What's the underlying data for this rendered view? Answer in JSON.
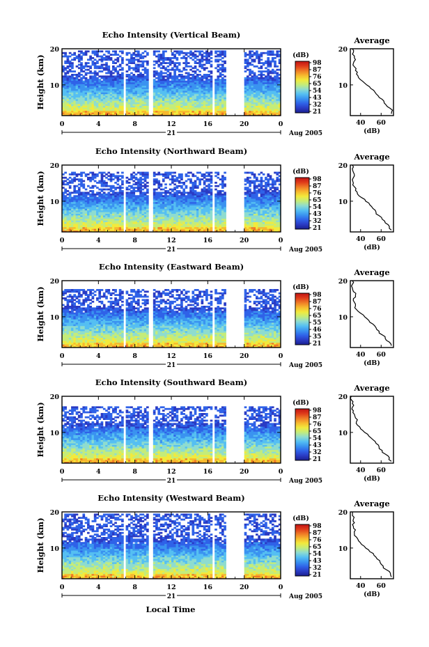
{
  "figure": {
    "xlabel": "Local Time",
    "date_label": "Aug 2005",
    "day_label": "21",
    "ylabel": "Height (km)",
    "colorbar_unit": "(dB)",
    "average_title": "Average",
    "average_xlabel": "(dB)",
    "colors": {
      "map": [
        "#1a1f8e",
        "#2a3bc4",
        "#2f62e8",
        "#3a93f0",
        "#55bff2",
        "#8edccf",
        "#c4ec7a",
        "#f2ea3c",
        "#f7b82e",
        "#ef7a26",
        "#df3a1a",
        "#c01414"
      ],
      "line": "#000000",
      "background": "#ffffff"
    }
  },
  "chart_data": [
    {
      "type": "heatmap",
      "title": "Echo Intensity (Vertical Beam)",
      "xlabel": "Local Time",
      "ylabel": "Height (km)",
      "x_ticks": [
        "0",
        "4",
        "8",
        "12",
        "16",
        "20",
        "0"
      ],
      "y_ticks": [
        "10",
        "20"
      ],
      "xlim": [
        0,
        24
      ],
      "ylim": [
        1.5,
        20
      ],
      "colorbar": {
        "label": "(dB)",
        "ticks": [
          "98",
          "87",
          "76",
          "65",
          "54",
          "43",
          "32",
          "21"
        ],
        "range": [
          21,
          98
        ]
      },
      "data_gaps_hours": [
        [
          6.7,
          7.1
        ],
        [
          9.6,
          10.0
        ],
        [
          16.6,
          16.8
        ],
        [
          18.1,
          19.9
        ]
      ],
      "echo_top_km": 19.5,
      "average_profile": {
        "title": "Average",
        "xlabel": "(dB)",
        "x_ticks": [
          "40",
          "60"
        ],
        "y_ticks": [
          "10",
          "20"
        ],
        "xlim": [
          30,
          72
        ],
        "ylim": [
          1.5,
          20
        ],
        "points": [
          [
            70,
            2
          ],
          [
            71,
            3
          ],
          [
            66,
            4
          ],
          [
            63,
            5
          ],
          [
            61,
            6
          ],
          [
            57,
            7
          ],
          [
            54,
            8
          ],
          [
            50,
            9
          ],
          [
            46,
            10
          ],
          [
            42,
            11
          ],
          [
            38,
            12
          ],
          [
            36,
            13
          ],
          [
            35,
            14
          ],
          [
            34,
            15
          ],
          [
            33,
            16
          ],
          [
            35,
            17
          ],
          [
            34,
            18
          ],
          [
            33,
            19
          ],
          [
            32,
            20
          ]
        ]
      }
    },
    {
      "type": "heatmap",
      "title": "Echo Intensity (Northward Beam)",
      "xlabel": "Local Time",
      "ylabel": "Height (km)",
      "x_ticks": [
        "0",
        "4",
        "8",
        "12",
        "16",
        "20",
        "0"
      ],
      "y_ticks": [
        "10",
        "20"
      ],
      "xlim": [
        0,
        24
      ],
      "ylim": [
        1.5,
        20
      ],
      "colorbar": {
        "label": "(dB)",
        "ticks": [
          "98",
          "87",
          "76",
          "65",
          "54",
          "43",
          "32",
          "21"
        ],
        "range": [
          21,
          98
        ]
      },
      "data_gaps_hours": [
        [
          6.7,
          7.1
        ],
        [
          9.6,
          10.0
        ],
        [
          16.6,
          16.8
        ],
        [
          18.1,
          19.9
        ]
      ],
      "echo_top_km": 18.0,
      "average_profile": {
        "title": "Average",
        "xlabel": "(dB)",
        "x_ticks": [
          "40",
          "60"
        ],
        "y_ticks": [
          "10",
          "20"
        ],
        "xlim": [
          30,
          72
        ],
        "ylim": [
          1.5,
          20
        ],
        "points": [
          [
            70,
            2
          ],
          [
            68,
            3
          ],
          [
            64,
            4
          ],
          [
            61,
            5
          ],
          [
            58,
            6
          ],
          [
            55,
            7
          ],
          [
            52,
            8
          ],
          [
            49,
            9
          ],
          [
            45,
            10
          ],
          [
            41,
            11
          ],
          [
            37,
            12
          ],
          [
            35,
            13
          ],
          [
            34,
            14
          ],
          [
            33,
            15
          ],
          [
            32,
            16
          ],
          [
            34,
            17
          ],
          [
            33,
            18
          ],
          [
            32,
            19
          ],
          [
            32,
            20
          ]
        ]
      }
    },
    {
      "type": "heatmap",
      "title": "Echo Intensity (Eastward Beam)",
      "xlabel": "Local Time",
      "ylabel": "Height (km)",
      "x_ticks": [
        "0",
        "4",
        "8",
        "12",
        "16",
        "20",
        "0"
      ],
      "y_ticks": [
        "10",
        "20"
      ],
      "xlim": [
        0,
        24
      ],
      "ylim": [
        1.5,
        20
      ],
      "colorbar": {
        "label": "(dB)",
        "ticks": [
          "98",
          "87",
          "76",
          "65",
          "55",
          "46",
          "35",
          "21"
        ],
        "range": [
          21,
          98
        ]
      },
      "data_gaps_hours": [
        [
          6.7,
          7.1
        ],
        [
          9.6,
          10.0
        ],
        [
          16.6,
          16.8
        ],
        [
          18.1,
          19.9
        ]
      ],
      "echo_top_km": 17.5,
      "average_profile": {
        "title": "Average",
        "xlabel": "(dB)",
        "x_ticks": [
          "40",
          "60"
        ],
        "y_ticks": [
          "10",
          "20"
        ],
        "xlim": [
          30,
          72
        ],
        "ylim": [
          1.5,
          20
        ],
        "points": [
          [
            70,
            2
          ],
          [
            68,
            3
          ],
          [
            64,
            4
          ],
          [
            61,
            5
          ],
          [
            58,
            6
          ],
          [
            55,
            7
          ],
          [
            52,
            8
          ],
          [
            48,
            9
          ],
          [
            44,
            10
          ],
          [
            40,
            11
          ],
          [
            36,
            12
          ],
          [
            35,
            13
          ],
          [
            34,
            14
          ],
          [
            33,
            15
          ],
          [
            35,
            16
          ],
          [
            33,
            17
          ],
          [
            32,
            18
          ],
          [
            32,
            19
          ],
          [
            32,
            20
          ]
        ]
      }
    },
    {
      "type": "heatmap",
      "title": "Echo Intensity (Southward Beam)",
      "xlabel": "Local Time",
      "ylabel": "Height (km)",
      "x_ticks": [
        "0",
        "4",
        "8",
        "12",
        "16",
        "20",
        "0"
      ],
      "y_ticks": [
        "10",
        "20"
      ],
      "xlim": [
        0,
        24
      ],
      "ylim": [
        1.5,
        20
      ],
      "colorbar": {
        "label": "(dB)",
        "ticks": [
          "98",
          "87",
          "76",
          "65",
          "54",
          "43",
          "32",
          "21"
        ],
        "range": [
          21,
          98
        ]
      },
      "data_gaps_hours": [
        [
          6.7,
          7.1
        ],
        [
          9.6,
          10.0
        ],
        [
          16.6,
          16.8
        ],
        [
          18.1,
          19.9
        ]
      ],
      "echo_top_km": 17.0,
      "average_profile": {
        "title": "Average",
        "xlabel": "(dB)",
        "x_ticks": [
          "40",
          "60"
        ],
        "y_ticks": [
          "10",
          "20"
        ],
        "xlim": [
          30,
          72
        ],
        "ylim": [
          1.5,
          20
        ],
        "points": [
          [
            70,
            2
          ],
          [
            68,
            3
          ],
          [
            64,
            4
          ],
          [
            61,
            5
          ],
          [
            58,
            6
          ],
          [
            55,
            7
          ],
          [
            52,
            8
          ],
          [
            48,
            9
          ],
          [
            44,
            10
          ],
          [
            40,
            11
          ],
          [
            37,
            12
          ],
          [
            36,
            13
          ],
          [
            35,
            14
          ],
          [
            34,
            15
          ],
          [
            33,
            16
          ],
          [
            32,
            17
          ],
          [
            32,
            18
          ],
          [
            31,
            19
          ],
          [
            31,
            20
          ]
        ]
      }
    },
    {
      "type": "heatmap",
      "title": "Echo Intensity (Westward Beam)",
      "xlabel": "Local Time",
      "ylabel": "Height (km)",
      "x_ticks": [
        "0",
        "4",
        "8",
        "12",
        "16",
        "20",
        "0"
      ],
      "y_ticks": [
        "10",
        "20"
      ],
      "xlim": [
        0,
        24
      ],
      "ylim": [
        1.5,
        20
      ],
      "colorbar": {
        "label": "(dB)",
        "ticks": [
          "98",
          "87",
          "76",
          "65",
          "54",
          "43",
          "32",
          "21"
        ],
        "range": [
          21,
          98
        ]
      },
      "data_gaps_hours": [
        [
          6.7,
          7.1
        ],
        [
          9.6,
          10.0
        ],
        [
          16.6,
          16.8
        ],
        [
          18.1,
          19.9
        ]
      ],
      "echo_top_km": 19.5,
      "average_profile": {
        "title": "Average",
        "xlabel": "(dB)",
        "x_ticks": [
          "40",
          "60"
        ],
        "y_ticks": [
          "10",
          "20"
        ],
        "xlim": [
          30,
          72
        ],
        "ylim": [
          1.5,
          20
        ],
        "points": [
          [
            70,
            2
          ],
          [
            69,
            3
          ],
          [
            65,
            4
          ],
          [
            62,
            5
          ],
          [
            59,
            6
          ],
          [
            56,
            7
          ],
          [
            53,
            8
          ],
          [
            49,
            9
          ],
          [
            45,
            10
          ],
          [
            41,
            11
          ],
          [
            38,
            12
          ],
          [
            36,
            13
          ],
          [
            34,
            14
          ],
          [
            35,
            15
          ],
          [
            33,
            16
          ],
          [
            34,
            17
          ],
          [
            33,
            18
          ],
          [
            32,
            19
          ],
          [
            32,
            20
          ]
        ]
      }
    }
  ]
}
